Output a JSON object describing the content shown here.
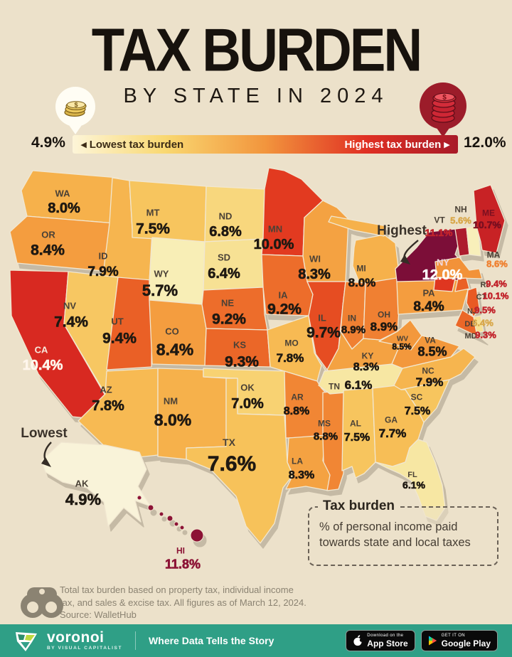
{
  "header": {
    "title": "TAX BURDEN",
    "subtitle": "BY STATE IN 2024"
  },
  "legend": {
    "min_value": "4.9%",
    "max_value": "12.0%",
    "low_label": "◂ Lowest tax burden",
    "high_label": "Highest tax burden ▸",
    "gradient": [
      "#fdf5d8",
      "#f9d871",
      "#f2953d",
      "#e03023",
      "#a81a28"
    ],
    "scale": [
      [
        4.9,
        "#f9f3d9"
      ],
      [
        5.7,
        "#f8eeb6"
      ],
      [
        6.4,
        "#f7e194"
      ],
      [
        7.0,
        "#f8d272"
      ],
      [
        7.6,
        "#f7c25a"
      ],
      [
        8.0,
        "#f6b14b"
      ],
      [
        8.5,
        "#f3983c"
      ],
      [
        9.0,
        "#ef7a2f"
      ],
      [
        9.5,
        "#e95a24"
      ],
      [
        10.0,
        "#e23a20"
      ],
      [
        10.5,
        "#d52521"
      ],
      [
        11.1,
        "#ad1c2e"
      ],
      [
        11.8,
        "#8c1335"
      ],
      [
        12.0,
        "#7c0e38"
      ]
    ]
  },
  "annotations": {
    "highest": "Highest",
    "lowest": "Lowest"
  },
  "states": [
    {
      "code": "WA",
      "value": "8.0%",
      "num": 8.0
    },
    {
      "code": "OR",
      "value": "8.4%",
      "num": 8.4
    },
    {
      "code": "CA",
      "value": "10.4%",
      "num": 10.4
    },
    {
      "code": "ID",
      "value": "7.9%",
      "num": 7.9
    },
    {
      "code": "NV",
      "value": "7.4%",
      "num": 7.4
    },
    {
      "code": "UT",
      "value": "9.4%",
      "num": 9.4
    },
    {
      "code": "AZ",
      "value": "7.8%",
      "num": 7.8
    },
    {
      "code": "MT",
      "value": "7.5%",
      "num": 7.5
    },
    {
      "code": "WY",
      "value": "5.7%",
      "num": 5.7
    },
    {
      "code": "CO",
      "value": "8.4%",
      "num": 8.4
    },
    {
      "code": "NM",
      "value": "8.0%",
      "num": 8.0
    },
    {
      "code": "ND",
      "value": "6.8%",
      "num": 6.8
    },
    {
      "code": "SD",
      "value": "6.4%",
      "num": 6.4
    },
    {
      "code": "NE",
      "value": "9.2%",
      "num": 9.2
    },
    {
      "code": "KS",
      "value": "9.3%",
      "num": 9.3
    },
    {
      "code": "OK",
      "value": "7.0%",
      "num": 7.0
    },
    {
      "code": "TX",
      "value": "7.6%",
      "num": 7.6
    },
    {
      "code": "MN",
      "value": "10.0%",
      "num": 10.0
    },
    {
      "code": "IA",
      "value": "9.2%",
      "num": 9.2
    },
    {
      "code": "MO",
      "value": "7.8%",
      "num": 7.8
    },
    {
      "code": "AR",
      "value": "8.8%",
      "num": 8.8
    },
    {
      "code": "LA",
      "value": "8.3%",
      "num": 8.3
    },
    {
      "code": "WI",
      "value": "8.3%",
      "num": 8.3
    },
    {
      "code": "IL",
      "value": "9.7%",
      "num": 9.7
    },
    {
      "code": "MS",
      "value": "8.8%",
      "num": 8.8
    },
    {
      "code": "MI",
      "value": "8.0%",
      "num": 8.0
    },
    {
      "code": "IN",
      "value": "8.9%",
      "num": 8.9
    },
    {
      "code": "KY",
      "value": "8.3%",
      "num": 8.3
    },
    {
      "code": "TN",
      "value": "6.1%",
      "num": 6.1
    },
    {
      "code": "AL",
      "value": "7.5%",
      "num": 7.5
    },
    {
      "code": "GA",
      "value": "7.7%",
      "num": 7.7
    },
    {
      "code": "FL",
      "value": "6.1%",
      "num": 6.1
    },
    {
      "code": "OH",
      "value": "8.9%",
      "num": 8.9
    },
    {
      "code": "WV",
      "value": "8.5%",
      "num": 8.5
    },
    {
      "code": "VA",
      "value": "8.5%",
      "num": 8.5
    },
    {
      "code": "NC",
      "value": "7.9%",
      "num": 7.9
    },
    {
      "code": "SC",
      "value": "7.5%",
      "num": 7.5
    },
    {
      "code": "PA",
      "value": "8.4%",
      "num": 8.4
    },
    {
      "code": "NY",
      "value": "12.0%",
      "num": 12.0
    },
    {
      "code": "NJ",
      "value": "9.5%",
      "num": 9.5
    },
    {
      "code": "DE",
      "value": "6.4%",
      "num": 6.4
    },
    {
      "code": "MD",
      "value": "9.3%",
      "num": 9.3
    },
    {
      "code": "VT",
      "value": "11.1%",
      "num": 11.1
    },
    {
      "code": "NH",
      "value": "5.6%",
      "num": 5.6
    },
    {
      "code": "MA",
      "value": "8.6%",
      "num": 8.6
    },
    {
      "code": "RI",
      "value": "9.4%",
      "num": 9.4
    },
    {
      "code": "CT",
      "value": "10.1%",
      "num": 10.1
    },
    {
      "code": "ME",
      "value": "10.7%",
      "num": 10.7
    },
    {
      "code": "AK",
      "value": "4.9%",
      "num": 4.9
    },
    {
      "code": "HI",
      "value": "11.8%",
      "num": 11.8
    }
  ],
  "infobox": {
    "title": "Tax burden",
    "line1": "% of personal income paid",
    "line2": "towards state and local taxes"
  },
  "footnote": {
    "line1": "Total tax burden based on property tax, individual income",
    "line2": "tax, and sales & excise tax. All figures as of March 12, 2024.",
    "line3": "Source: WalletHub"
  },
  "footer": {
    "brand": "voronoi",
    "brand_sub": "BY VISUAL CAPITALIST",
    "tagline": "Where Data Tells the Story",
    "appstore_line1": "Download on the",
    "appstore_line2": "App Store",
    "gplay_line1": "GET IT ON",
    "gplay_line2": "Google Play"
  },
  "chart_data": {
    "type": "heatmap",
    "title": "Tax Burden by State in 2024",
    "unit": "% of personal income paid towards state and local taxes",
    "range": [
      4.9,
      12.0
    ],
    "legend_position": "top",
    "values": {
      "AK": 4.9,
      "NH": 5.6,
      "WY": 5.7,
      "FL": 6.1,
      "TN": 6.1,
      "DE": 6.4,
      "SD": 6.4,
      "ND": 6.8,
      "OK": 7.0,
      "NV": 7.4,
      "AL": 7.5,
      "MT": 7.5,
      "SC": 7.5,
      "TX": 7.6,
      "GA": 7.7,
      "AZ": 7.8,
      "MO": 7.8,
      "ID": 7.9,
      "NC": 7.9,
      "MI": 8.0,
      "NM": 8.0,
      "WA": 8.0,
      "KY": 8.3,
      "LA": 8.3,
      "WI": 8.3,
      "CO": 8.4,
      "OR": 8.4,
      "PA": 8.4,
      "VA": 8.5,
      "WV": 8.5,
      "MA": 8.6,
      "AR": 8.8,
      "MS": 8.8,
      "IN": 8.9,
      "OH": 8.9,
      "IA": 9.2,
      "NE": 9.2,
      "KS": 9.3,
      "MD": 9.3,
      "RI": 9.4,
      "UT": 9.4,
      "NJ": 9.5,
      "IL": 9.7,
      "MN": 10.0,
      "CT": 10.1,
      "CA": 10.4,
      "ME": 10.7,
      "VT": 11.1,
      "HI": 11.8,
      "NY": 12.0
    }
  }
}
